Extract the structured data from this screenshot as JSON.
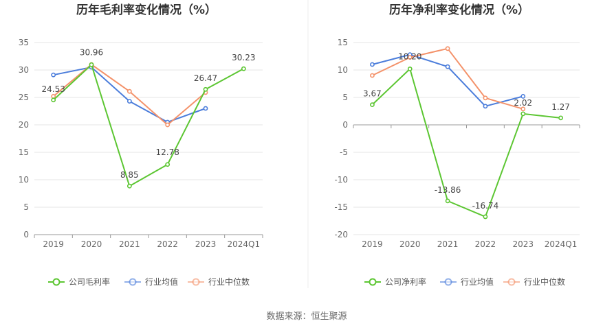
{
  "source": "数据来源：恒生聚源",
  "chart_data": [
    {
      "type": "line",
      "title": "历年毛利率变化情况（%）",
      "categories": [
        "2019",
        "2020",
        "2021",
        "2022",
        "2023",
        "2024Q1"
      ],
      "ylim": [
        0,
        35
      ],
      "yticks": [
        0,
        5,
        10,
        15,
        20,
        25,
        30,
        35
      ],
      "grid": true,
      "legend_position": "bottom",
      "series": [
        {
          "name": "公司毛利率",
          "color": "#5cc632",
          "values": [
            24.53,
            30.96,
            8.85,
            12.78,
            26.47,
            30.23
          ],
          "labels": [
            "24.53",
            "30.96",
            "8.85",
            "12.78",
            "26.47",
            "30.23"
          ],
          "label_offsets": [
            [
              0,
              -12
            ],
            [
              0,
              -14
            ],
            [
              0,
              -12
            ],
            [
              0,
              -14
            ],
            [
              0,
              -12
            ],
            [
              0,
              -12
            ]
          ]
        },
        {
          "name": "行业均值",
          "color": "#4b7ddb",
          "values": [
            29.1,
            30.5,
            24.3,
            20.5,
            23.0,
            null
          ]
        },
        {
          "name": "行业中位数",
          "color": "#f4926a",
          "values": [
            25.2,
            31.0,
            26.1,
            20.0,
            25.9,
            null
          ]
        }
      ]
    },
    {
      "type": "line",
      "title": "历年净利率变化情况（%）",
      "categories": [
        "2019",
        "2020",
        "2021",
        "2022",
        "2023",
        "2024Q1"
      ],
      "ylim": [
        -20,
        15
      ],
      "yticks": [
        -20,
        -15,
        -10,
        -5,
        0,
        5,
        10,
        15
      ],
      "grid": true,
      "legend_position": "bottom",
      "series": [
        {
          "name": "公司净利率",
          "color": "#5cc632",
          "values": [
            3.67,
            10.2,
            -13.86,
            -16.74,
            2.02,
            1.27
          ],
          "labels": [
            "3.67",
            "10.20",
            "-13.86",
            "-16.74",
            "2.02",
            "1.27"
          ],
          "label_offsets": [
            [
              0,
              -12
            ],
            [
              0,
              -14
            ],
            [
              0,
              -12
            ],
            [
              0,
              -12
            ],
            [
              0,
              -12
            ],
            [
              0,
              -12
            ]
          ]
        },
        {
          "name": "行业均值",
          "color": "#4b7ddb",
          "values": [
            11.0,
            12.8,
            10.6,
            3.4,
            5.2,
            null
          ]
        },
        {
          "name": "行业中位数",
          "color": "#f4926a",
          "values": [
            9.0,
            12.3,
            13.9,
            4.9,
            2.9,
            null
          ]
        }
      ]
    }
  ]
}
